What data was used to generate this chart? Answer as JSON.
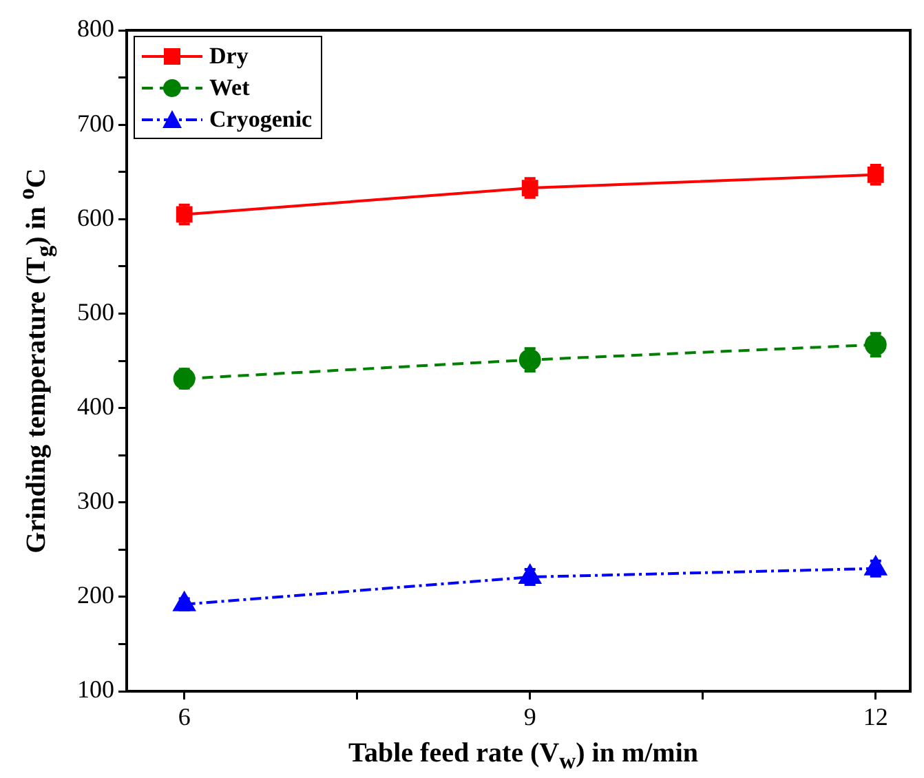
{
  "chart_data": {
    "type": "line",
    "xlabel": "Table feed rate (V$_{w}$) in m/min",
    "ylabel": "Grinding temperature (T$_{g}$) in $^{o}$C",
    "x": [
      6,
      9,
      12
    ],
    "series": [
      {
        "name": "Dry",
        "color": "#ff0000",
        "values": [
          605,
          633,
          647
        ],
        "errors": [
          10,
          10,
          10
        ],
        "marker": "square",
        "line_style": "solid"
      },
      {
        "name": "Wet",
        "color": "#008000",
        "values": [
          431,
          451,
          467
        ],
        "errors": [
          10,
          12,
          12
        ],
        "marker": "circle",
        "line_style": "dashed"
      },
      {
        "name": "Cryogenic",
        "color": "#0000ff",
        "values": [
          192,
          221,
          230
        ],
        "errors": [
          6,
          8,
          8
        ],
        "marker": "triangle",
        "line_style": "dashdot"
      }
    ],
    "xlim": [
      5.5,
      12.3
    ],
    "xticks": [
      6,
      {
        "value": 7.5,
        "label": null
      },
      9,
      {
        "value": 10.5,
        "label": null
      },
      12
    ],
    "ylim": [
      100,
      800
    ],
    "yticks": [
      100,
      {
        "value": 150,
        "label": null
      },
      200,
      {
        "value": 250,
        "label": null
      },
      300,
      {
        "value": 350,
        "label": null
      },
      400,
      {
        "value": 450,
        "label": null
      },
      500,
      {
        "value": 550,
        "label": null
      },
      600,
      {
        "value": 650,
        "label": null
      },
      700,
      {
        "value": 750,
        "label": null
      },
      800
    ],
    "grid": false,
    "legend": "top left"
  }
}
